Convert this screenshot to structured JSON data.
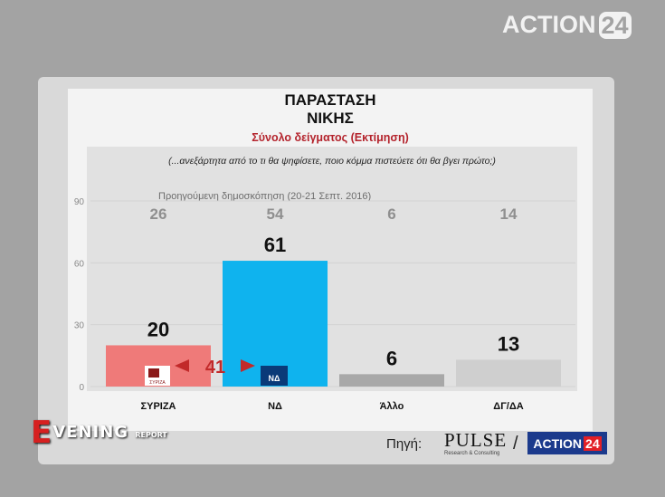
{
  "channel": {
    "name": "ACTION",
    "number": "24"
  },
  "chart_data": {
    "type": "bar",
    "title_line1": "ΠΑΡΑΣΤΑΣΗ",
    "title_line2": "ΝΙΚΗΣ",
    "subtitle": "Σύνολο δείγματος   (Εκτίμηση)",
    "question": "(...ανεξάρτητα από το τι θα ψηφίσετε, ποιο κόμμα πιστεύετε ότι θα βγει πρώτο;)",
    "categories": [
      "ΣΥΡΙΖΑ",
      "ΝΔ",
      "Άλλο",
      "ΔΓ/ΔΑ"
    ],
    "values": [
      20,
      61,
      6,
      13
    ],
    "previous_label": "Προηγούμενη δημοσκόπηση (20-21 Σεπτ. 2016)",
    "previous_values": [
      26,
      54,
      6,
      14
    ],
    "bar_colors": [
      "#ef7a79",
      "#0fb3ee",
      "#a8a8a8",
      "#cfcfcf"
    ],
    "ylim": [
      0,
      90
    ],
    "yticks": [
      "0",
      "30",
      "60",
      "90"
    ],
    "gap_value": "41",
    "gap_color": "#c22a2a"
  },
  "party_logos": {
    "syriza": "ΣΥΡΙΖΑ",
    "nd": "ΝΔ"
  },
  "footer": {
    "source_label": "Πηγή:",
    "pulse": "PULSE",
    "pulse_sub": "Research & Consulting",
    "slash": "/",
    "action": "ACTION",
    "action_num": "24"
  },
  "show": {
    "big": "E",
    "word": "VENING",
    "small": "REPORT"
  }
}
